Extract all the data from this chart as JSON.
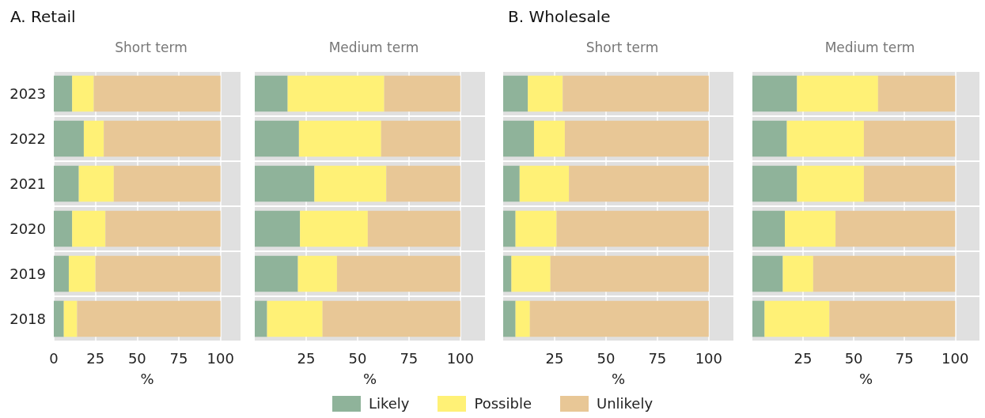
{
  "chart_data": [
    {
      "type": "bar",
      "orientation": "horizontal",
      "stacked": true,
      "title": "A. Retail",
      "subtitle": "Short term",
      "xlabel": "%",
      "categories": [
        "2023",
        "2022",
        "2021",
        "2020",
        "2019",
        "2018"
      ],
      "xlim": [
        0,
        112
      ],
      "xticks": [
        0,
        25,
        50,
        75,
        100
      ],
      "grid": true,
      "legend": "bottom",
      "series": [
        {
          "name": "Likely",
          "color": "#8fb39a",
          "values": [
            11,
            18,
            15,
            11,
            9,
            6
          ]
        },
        {
          "name": "Possible",
          "color": "#fff176",
          "values": [
            13,
            12,
            21,
            20,
            16,
            8
          ]
        },
        {
          "name": "Unlikely",
          "color": "#e8c796",
          "values": [
            76,
            70,
            64,
            69,
            75,
            86
          ]
        }
      ]
    },
    {
      "type": "bar",
      "orientation": "horizontal",
      "stacked": true,
      "subtitle": "Medium term",
      "xlabel": "%",
      "categories": [
        "2023",
        "2022",
        "2021",
        "2020",
        "2019",
        "2018"
      ],
      "xlim": [
        0,
        112
      ],
      "xticks": [
        25,
        50,
        75,
        100
      ],
      "grid": true,
      "tick_labels": "x",
      "series": [
        {
          "color": "#8fb39a",
          "values": [
            16,
            21.5,
            29,
            22,
            21,
            6
          ]
        },
        {
          "color": "#fff176",
          "values": [
            47,
            40,
            35,
            33,
            19,
            27
          ]
        },
        {
          "color": "#e8c796",
          "values": [
            37,
            38.5,
            36,
            45,
            60,
            67
          ]
        }
      ]
    },
    {
      "type": "bar",
      "orientation": "horizontal",
      "stacked": true,
      "title": "B. Wholesale",
      "subtitle": "Short term",
      "xlabel": "%",
      "categories": [
        "2023",
        "2022",
        "2021",
        "2020",
        "2019",
        "2018"
      ],
      "xlim": [
        0,
        112
      ],
      "xticks": [
        25,
        50,
        75,
        100
      ],
      "grid": true,
      "tick_labels": "x",
      "series": [
        {
          "color": "#8fb39a",
          "values": [
            12,
            15,
            8,
            6,
            4,
            6
          ]
        },
        {
          "color": "#fff176",
          "values": [
            17,
            15,
            24,
            20,
            19,
            7
          ]
        },
        {
          "color": "#e8c796",
          "values": [
            71,
            70,
            68,
            74,
            77,
            87
          ]
        }
      ]
    },
    {
      "type": "bar",
      "orientation": "horizontal",
      "stacked": true,
      "subtitle": "Medium term",
      "xlabel": "%",
      "categories": [
        "2023",
        "2022",
        "2021",
        "2020",
        "2019",
        "2018"
      ],
      "xlim": [
        0,
        112
      ],
      "xticks": [
        25,
        50,
        75,
        100
      ],
      "grid": true,
      "tick_labels": "x",
      "series": [
        {
          "color": "#8fb39a",
          "values": [
            22,
            17,
            22,
            16,
            15,
            6
          ]
        },
        {
          "color": "#fff176",
          "values": [
            40,
            38,
            33,
            25,
            15,
            32
          ]
        },
        {
          "color": "#e8c796",
          "values": [
            38,
            45,
            45,
            59,
            70,
            62
          ]
        }
      ]
    }
  ]
}
